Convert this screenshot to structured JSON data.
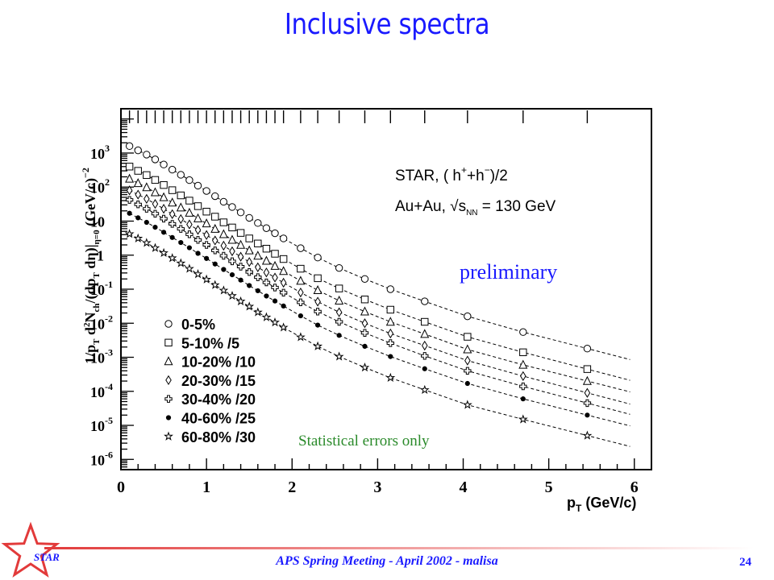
{
  "slide": {
    "title": "Inclusive spectra",
    "footer": "APS Spring Meeting - April 2002 - malisa",
    "page_number": "24",
    "logo_text": "STAR"
  },
  "annotations": {
    "preliminary": "preliminary",
    "stat_note": "Statistical errors only",
    "experiment": "STAR, ( h",
    "experiment_sup": "+",
    "experiment_mid": "+h",
    "experiment_sup2": "−",
    "experiment_end": ")/2",
    "system": "Au+Au, ",
    "system_sqrt": "√s",
    "system_sub": "NN",
    "system_energy": " = 130 GeV"
  },
  "colors": {
    "accent": "#1a1aff",
    "note": "#2a8a2a",
    "footer_line": "#e23a3a"
  },
  "chart_data": {
    "type": "scatter",
    "xlabel": "p_T (GeV/c)",
    "ylabel": "1/p_T d²N_ch/(dp_T dη)|η=0 (GeV/c)^-2",
    "xlim": [
      0,
      6.2
    ],
    "ylim": [
      5e-07,
      20000
    ],
    "y_scale": "log",
    "x_ticks": [
      "0",
      "1",
      "2",
      "3",
      "4",
      "5",
      "6"
    ],
    "y_ticks": [
      {
        "base": "10",
        "exp": "3",
        "value": 1000
      },
      {
        "base": "10",
        "exp": "2",
        "value": 100
      },
      {
        "base": "10",
        "exp": "",
        "value": 10
      },
      {
        "base": "1",
        "exp": "",
        "value": 1
      },
      {
        "base": "10",
        "exp": "-1",
        "value": 0.1
      },
      {
        "base": "10",
        "exp": "-2",
        "value": 0.01
      },
      {
        "base": "10",
        "exp": "-3",
        "value": 0.001
      },
      {
        "base": "10",
        "exp": "-4",
        "value": 0.0001
      },
      {
        "base": "10",
        "exp": "-5",
        "value": 1e-05
      },
      {
        "base": "10",
        "exp": "-6",
        "value": 1e-06
      }
    ],
    "legend_position": "bottom-left",
    "x": [
      0.1,
      0.2,
      0.3,
      0.4,
      0.5,
      0.6,
      0.7,
      0.8,
      0.9,
      1.0,
      1.1,
      1.2,
      1.3,
      1.4,
      1.5,
      1.6,
      1.7,
      1.8,
      1.9,
      2.1,
      2.3,
      2.55,
      2.85,
      3.15,
      3.55,
      4.05,
      4.7,
      5.45
    ],
    "series": [
      {
        "name": "0-5%",
        "marker": "circle",
        "values": [
          1600,
          1200,
          900,
          650,
          460,
          325,
          230,
          160,
          110,
          77,
          54,
          37,
          26,
          18,
          12.5,
          8.8,
          6.2,
          4.4,
          3.1,
          1.6,
          0.85,
          0.42,
          0.2,
          0.1,
          0.044,
          0.016,
          0.0055,
          0.0018
        ]
      },
      {
        "name": "5-10% /5",
        "marker": "square",
        "values": [
          400,
          300,
          225,
          162,
          115,
          81,
          57,
          40,
          27.5,
          19,
          13.5,
          9.2,
          6.5,
          4.5,
          3.1,
          2.2,
          1.55,
          1.1,
          0.77,
          0.4,
          0.21,
          0.105,
          0.05,
          0.025,
          0.011,
          0.004,
          0.0014,
          0.00045
        ]
      },
      {
        "name": "10-20% /10",
        "marker": "triangle",
        "values": [
          175,
          130,
          98,
          70,
          50,
          35,
          25,
          17.5,
          12,
          8.5,
          5.9,
          4.1,
          2.8,
          2,
          1.37,
          0.96,
          0.68,
          0.48,
          0.34,
          0.175,
          0.093,
          0.046,
          0.022,
          0.011,
          0.0048,
          0.0017,
          0.0006,
          0.0002
        ]
      },
      {
        "name": "20-30% /15",
        "marker": "diamond",
        "values": [
          80,
          60,
          45,
          32,
          23,
          16,
          11.5,
          8,
          5.5,
          3.9,
          2.7,
          1.9,
          1.3,
          0.9,
          0.63,
          0.44,
          0.31,
          0.22,
          0.155,
          0.08,
          0.043,
          0.021,
          0.01,
          0.005,
          0.0022,
          0.0008,
          0.00028,
          9e-05
        ]
      },
      {
        "name": "30-40% /20",
        "marker": "cross",
        "values": [
          42,
          31,
          23,
          16.5,
          11.8,
          8.3,
          5.9,
          4.1,
          2.8,
          2,
          1.38,
          0.96,
          0.66,
          0.46,
          0.32,
          0.225,
          0.158,
          0.112,
          0.079,
          0.041,
          0.022,
          0.011,
          0.0052,
          0.0026,
          0.0011,
          0.0004,
          0.00014,
          4.5e-05
        ]
      },
      {
        "name": "40-60% /25",
        "marker": "star",
        "values": [
          17,
          12.5,
          9.2,
          6.6,
          4.7,
          3.3,
          2.35,
          1.65,
          1.13,
          0.8,
          0.55,
          0.38,
          0.265,
          0.185,
          0.128,
          0.09,
          0.063,
          0.045,
          0.032,
          0.0165,
          0.0088,
          0.0044,
          0.0021,
          0.00105,
          0.00046,
          0.00017,
          6e-05,
          2e-05
        ]
      },
      {
        "name": "60-80% /30",
        "marker": "hollow-star",
        "values": [
          4.2,
          3.1,
          2.3,
          1.63,
          1.16,
          0.82,
          0.58,
          0.4,
          0.277,
          0.193,
          0.133,
          0.092,
          0.064,
          0.044,
          0.031,
          0.021,
          0.015,
          0.0106,
          0.0075,
          0.0039,
          0.0021,
          0.00105,
          0.0005,
          0.00025,
          0.00011,
          4e-05,
          1.5e-05,
          5e-06
        ]
      }
    ]
  }
}
